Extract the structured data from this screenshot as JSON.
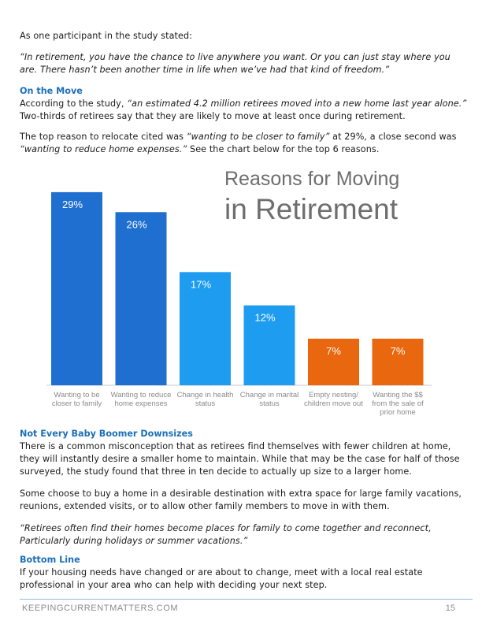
{
  "intro": "As one participant in the study stated:",
  "quote1": "“In retirement, you have the chance to live anywhere you want. Or you can just stay where you are. There hasn’t been another time in life when we’ve had that kind of freedom.”",
  "section_move": {
    "heading": "On the Move",
    "p1_lead": "According to the study, ",
    "p1_quote": "“an estimated 4.2 million retirees moved into a new home last year alone.”",
    "p1_tail": " Two-thirds of retirees say that they are likely to move at least once during retirement.",
    "p2_lead": "The top reason to relocate cited was ",
    "p2_q1": "“wanting to be closer to family”",
    "p2_mid": " at 29%, a close second was ",
    "p2_q2": "“wanting to reduce home expenses.”",
    "p2_tail": " See the chart below for the top 6 reasons."
  },
  "chart_data": {
    "type": "bar",
    "title_line1": "Reasons for Moving",
    "title_line2": "in Retirement",
    "categories": [
      [
        "Wanting to be",
        "closer to family"
      ],
      [
        "Wanting to reduce",
        "home expenses"
      ],
      [
        "Change in health",
        "status"
      ],
      [
        "Change in marital",
        "status"
      ],
      [
        "Empty nesting/",
        "children move out"
      ],
      [
        "Wanting the $$",
        "from the sale of",
        "prior home"
      ]
    ],
    "values": [
      29,
      26,
      17,
      12,
      7,
      7
    ],
    "value_labels": [
      "29%",
      "26%",
      "17%",
      "12%",
      "7%",
      "7%"
    ],
    "colors": [
      "#1f6fd1",
      "#1f6fd1",
      "#1e9cf0",
      "#1e9cf0",
      "#e8670f",
      "#e8670f"
    ],
    "label_colors": [
      "#ffffff",
      "#ffffff",
      "#ffffff",
      "#ffffff",
      "#ffffff",
      "#ffffff"
    ],
    "ylim": [
      0,
      31
    ]
  },
  "section_downsize": {
    "heading": "Not Every Baby Boomer Downsizes",
    "p1": "There is a common misconception that as retirees find themselves with fewer children at home, they will instantly desire a smaller home to maintain. While that may be the case for half of those surveyed, the study found that three in ten decide to actually up size to a larger home.",
    "p2": "Some choose to buy a home in a desirable destination with extra space for large family vacations, reunions, extended visits, or to allow other family members to move in with them.",
    "quote": "“Retirees often find their homes become places for family to come together and reconnect, Particularly during holidays or summer vacations.”"
  },
  "section_bottom": {
    "heading": "Bottom Line",
    "p1": "If your housing needs have changed or are about to change, meet with a local real estate professional in your area who can help with deciding your next step."
  },
  "footer": {
    "site": "KEEPINGCURRENTMATTERS.COM",
    "page": "15"
  }
}
